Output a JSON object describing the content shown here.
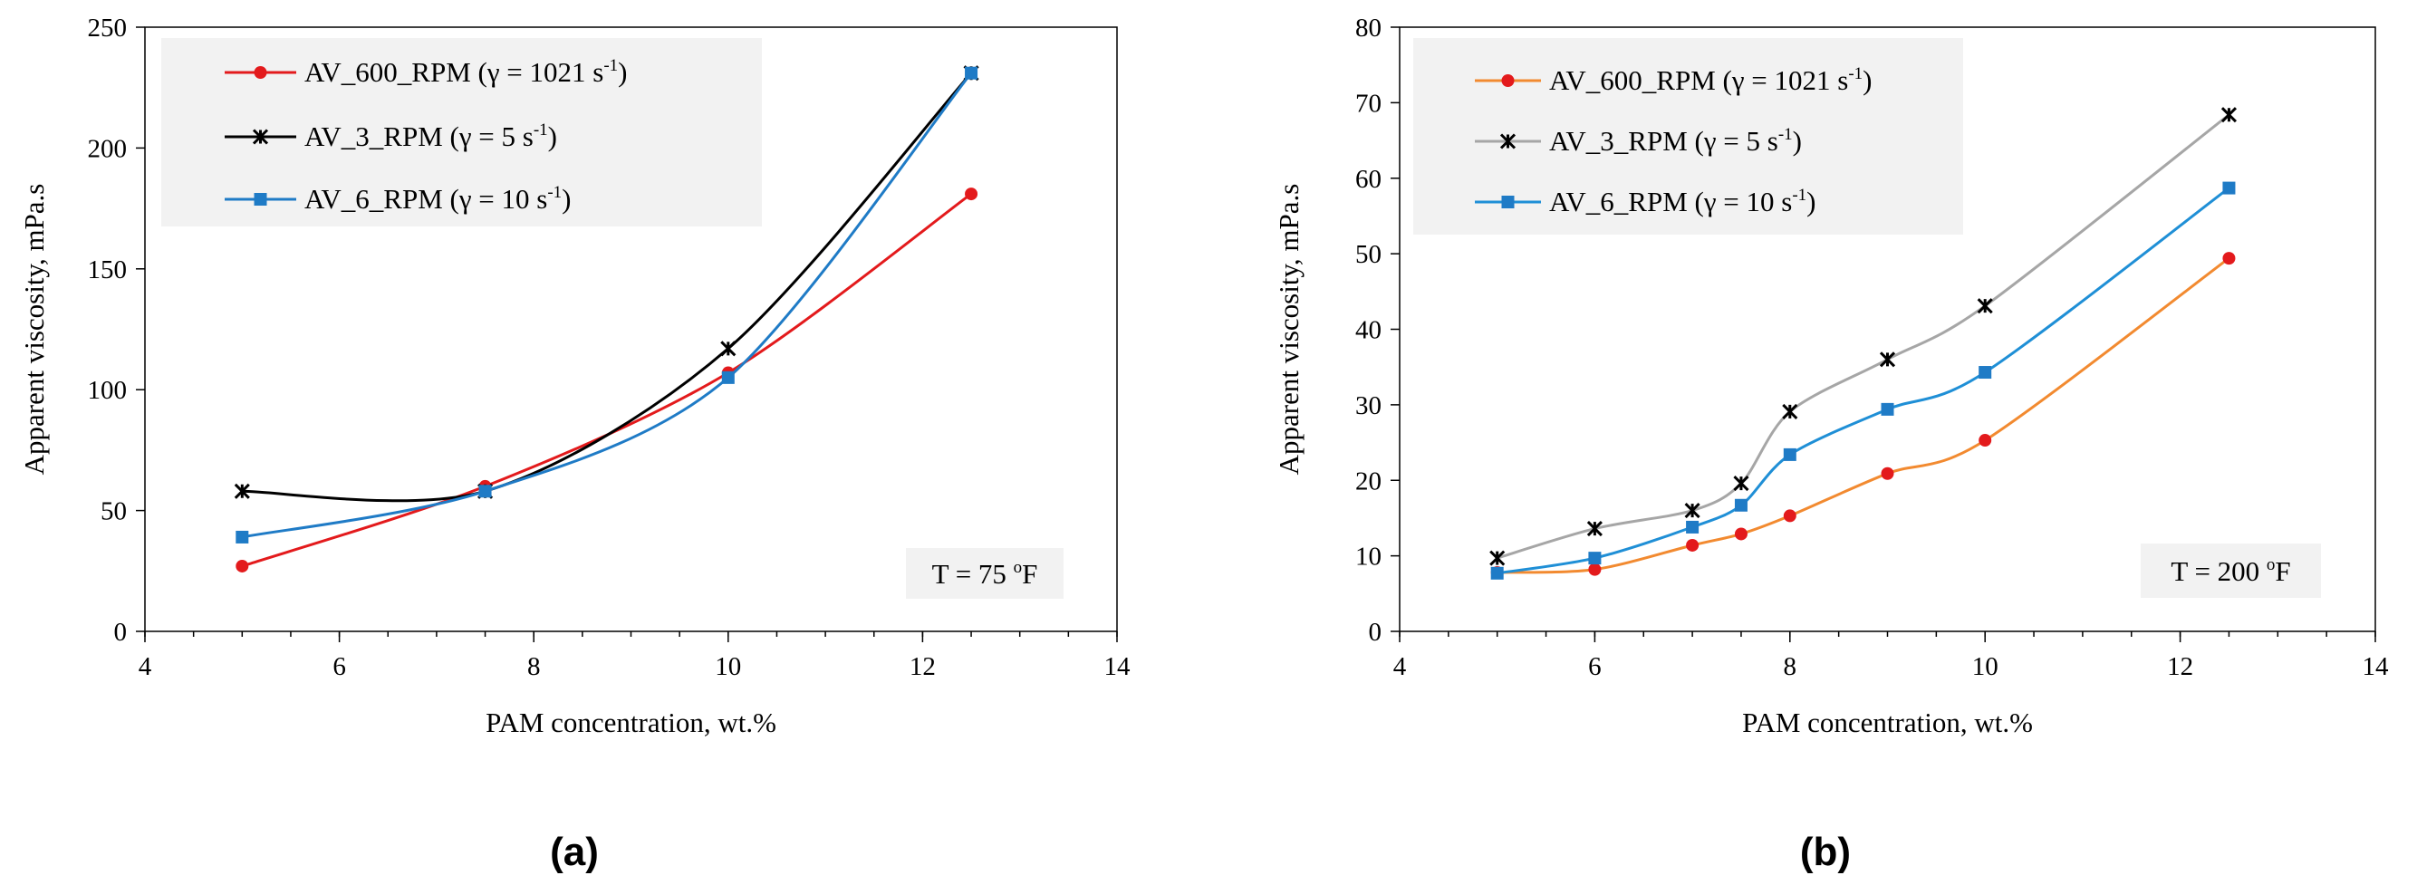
{
  "chart_data": [
    {
      "type": "line",
      "panel_label": "(a)",
      "xlabel": "PAM concentration, wt.%",
      "ylabel": "Apparent  viscosity, mPa.s",
      "xlim": [
        4,
        14
      ],
      "ylim": [
        0,
        250
      ],
      "xticks": [
        4,
        6,
        8,
        10,
        12,
        14
      ],
      "yticks": [
        0,
        50,
        100,
        150,
        200,
        250
      ],
      "annotation": {
        "prefix": "T = 75 ",
        "sup": "o",
        "suffix": "F"
      },
      "legend_position": "top-left",
      "series": [
        {
          "name": "AV_600_RPM",
          "shear_text": "(γ = 1021 s",
          "shear_sup": "-1",
          "shear_end": ")",
          "color": "#e31a1c",
          "marker": "circle",
          "x": [
            5,
            7.5,
            10,
            12.5
          ],
          "values": [
            27,
            60,
            107,
            181
          ]
        },
        {
          "name": "AV_3_RPM",
          "shear_text": "(γ = 5 s",
          "shear_sup": "-1",
          "shear_end": ")",
          "color": "#000000",
          "marker": "star",
          "x": [
            5,
            7.5,
            10,
            12.5
          ],
          "values": [
            58,
            58,
            117,
            231
          ]
        },
        {
          "name": "AV_6_RPM",
          "shear_text": "(γ = 10 s",
          "shear_sup": "-1",
          "shear_end": ")",
          "color": "#1f7bc6",
          "marker": "square",
          "x": [
            5,
            7.5,
            10,
            12.5
          ],
          "values": [
            39,
            58,
            105,
            231
          ]
        }
      ]
    },
    {
      "type": "line",
      "panel_label": "(b)",
      "xlabel": "PAM concentration, wt.%",
      "ylabel": "Apparent  viscosity, mPa.s",
      "xlim": [
        4,
        14
      ],
      "ylim": [
        0,
        80
      ],
      "xticks": [
        4,
        6,
        8,
        10,
        12,
        14
      ],
      "yticks": [
        0,
        10,
        20,
        30,
        40,
        50,
        60,
        70,
        80
      ],
      "annotation": {
        "prefix": "T = 200 ",
        "sup": "o",
        "suffix": "F"
      },
      "legend_position": "top-left",
      "series": [
        {
          "name": "AV_600_RPM",
          "shear_text": "(γ = 1021 s",
          "shear_sup": "-1",
          "shear_end": ")",
          "color": "#f28a30",
          "marker": "circle",
          "marker_color": "#e31a1c",
          "x": [
            5,
            6,
            7,
            7.5,
            8,
            9,
            10,
            12.5
          ],
          "values": [
            7.8,
            8.2,
            11.4,
            12.9,
            15.3,
            20.9,
            25.3,
            49.4
          ]
        },
        {
          "name": "AV_3_RPM",
          "shear_text": "(γ = 5 s",
          "shear_sup": "-1",
          "shear_end": ")",
          "color": "#a6a6a6",
          "marker": "star",
          "marker_color": "#000000",
          "x": [
            5,
            6,
            7,
            7.5,
            8,
            9,
            10,
            12.5
          ],
          "values": [
            9.7,
            13.6,
            16.0,
            19.6,
            29.1,
            36.0,
            43.1,
            68.4
          ]
        },
        {
          "name": "AV_6_RPM",
          "shear_text": "(γ = 10 s",
          "shear_sup": "-1",
          "shear_end": ")",
          "color": "#1f8fd6",
          "marker": "square",
          "marker_color": "#1f7bc6",
          "x": [
            5,
            6,
            7,
            7.5,
            8,
            9,
            10,
            12.5
          ],
          "values": [
            7.7,
            9.7,
            13.8,
            16.7,
            23.4,
            29.4,
            34.3,
            58.7
          ]
        }
      ]
    }
  ]
}
